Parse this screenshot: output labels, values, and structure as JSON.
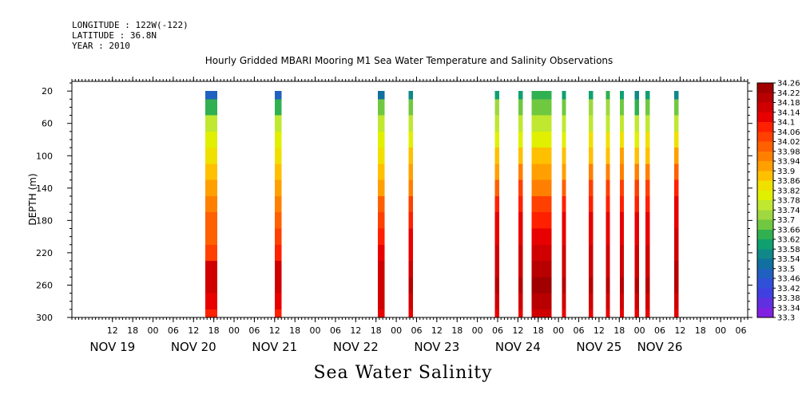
{
  "header": {
    "longitude": "LONGITUDE : 122W(-122)",
    "latitude": "LATITUDE : 36.8N",
    "year": "YEAR : 2010"
  },
  "chart_data": {
    "type": "heatmap",
    "title": "Hourly Gridded MBARI Mooring M1 Sea Water Temperature and Salinity Observations",
    "variable_label": "Sea Water Salinity",
    "ylabel": "DEPTH (m)",
    "ylim": [
      300,
      8
    ],
    "y_ticks": [
      20,
      60,
      100,
      140,
      180,
      220,
      260,
      300
    ],
    "x_range_hours": [
      0,
      200
    ],
    "x_hour_ticks": [
      {
        "h": 12,
        "label": "12"
      },
      {
        "h": 18,
        "label": "18"
      },
      {
        "h": 24,
        "label": "00"
      },
      {
        "h": 30,
        "label": "06"
      },
      {
        "h": 36,
        "label": "12"
      },
      {
        "h": 42,
        "label": "18"
      },
      {
        "h": 48,
        "label": "00"
      },
      {
        "h": 54,
        "label": "06"
      },
      {
        "h": 60,
        "label": "12"
      },
      {
        "h": 66,
        "label": "18"
      },
      {
        "h": 72,
        "label": "00"
      },
      {
        "h": 78,
        "label": "06"
      },
      {
        "h": 84,
        "label": "12"
      },
      {
        "h": 90,
        "label": "18"
      },
      {
        "h": 96,
        "label": "00"
      },
      {
        "h": 102,
        "label": "06"
      },
      {
        "h": 108,
        "label": "12"
      },
      {
        "h": 114,
        "label": "18"
      },
      {
        "h": 120,
        "label": "00"
      },
      {
        "h": 126,
        "label": "06"
      },
      {
        "h": 132,
        "label": "12"
      },
      {
        "h": 138,
        "label": "18"
      },
      {
        "h": 144,
        "label": "00"
      },
      {
        "h": 150,
        "label": "06"
      },
      {
        "h": 156,
        "label": "12"
      },
      {
        "h": 162,
        "label": "18"
      },
      {
        "h": 168,
        "label": "00"
      },
      {
        "h": 174,
        "label": "06"
      },
      {
        "h": 180,
        "label": "12"
      },
      {
        "h": 186,
        "label": "18"
      },
      {
        "h": 192,
        "label": "00"
      },
      {
        "h": 198,
        "label": "06"
      }
    ],
    "date_labels": [
      {
        "h": 12,
        "label": "NOV 19"
      },
      {
        "h": 36,
        "label": "NOV 20"
      },
      {
        "h": 60,
        "label": "NOV 21"
      },
      {
        "h": 84,
        "label": "NOV 22"
      },
      {
        "h": 108,
        "label": "NOV 23"
      },
      {
        "h": 132,
        "label": "NOV 24"
      },
      {
        "h": 156,
        "label": "NOV 25"
      },
      {
        "h": 174,
        "label": "NOV 26"
      }
    ],
    "colorbar_levels": [
      "34.26",
      "34.22",
      "34.18",
      "34.14",
      "34.1",
      "34.06",
      "34.02",
      "33.98",
      "33.94",
      "33.9",
      "33.86",
      "33.82",
      "33.78",
      "33.74",
      "33.7",
      "33.66",
      "33.62",
      "33.58",
      "33.54",
      "33.5",
      "33.46",
      "33.42",
      "33.38",
      "33.34",
      "33.3"
    ],
    "colorbar_colors": [
      "#a00000",
      "#b80000",
      "#d00000",
      "#e80000",
      "#ff2000",
      "#ff4000",
      "#ff6000",
      "#ff8000",
      "#ffa000",
      "#ffc000",
      "#f0e000",
      "#e0f000",
      "#c0e830",
      "#a0d840",
      "#70c840",
      "#30b050",
      "#10a070",
      "#108888",
      "#1070a0",
      "#2060c0",
      "#3050d8",
      "#4040e0",
      "#6030e0",
      "#8020e0",
      "#a000f0"
    ],
    "depth_levels": [
      20,
      40,
      60,
      80,
      100,
      120,
      140,
      160,
      180,
      200,
      220,
      240,
      260,
      280,
      300
    ],
    "columns": [
      {
        "t0": 39.5,
        "t1": 43.0,
        "values": [
          33.48,
          33.62,
          33.74,
          33.78,
          33.82,
          33.86,
          33.9,
          33.96,
          33.98,
          34.0,
          34.04,
          34.14,
          34.16,
          34.1,
          34.08
        ]
      },
      {
        "t0": 60.0,
        "t1": 62.0,
        "values": [
          33.48,
          33.64,
          33.74,
          33.78,
          33.82,
          33.86,
          33.9,
          33.96,
          34.0,
          34.02,
          34.06,
          34.14,
          34.16,
          34.12,
          34.08
        ]
      },
      {
        "t0": 90.5,
        "t1": 92.5,
        "values": [
          33.5,
          33.66,
          33.74,
          33.78,
          33.82,
          33.86,
          33.9,
          33.98,
          34.02,
          34.06,
          34.1,
          34.14,
          34.16,
          34.14,
          34.1
        ]
      },
      {
        "t0": 99.7,
        "t1": 100.9,
        "values": [
          33.56,
          33.66,
          33.74,
          33.8,
          33.86,
          33.9,
          33.96,
          34.02,
          34.06,
          34.1,
          34.12,
          34.14,
          34.18,
          34.14,
          34.1
        ]
      },
      {
        "t0": 125.2,
        "t1": 126.5,
        "values": [
          33.6,
          33.7,
          33.76,
          33.8,
          33.86,
          33.92,
          34.0,
          34.06,
          34.1,
          34.12,
          34.14,
          34.16,
          34.18,
          34.16,
          34.12
        ]
      },
      {
        "t0": 132.2,
        "t1": 133.5,
        "values": [
          33.58,
          33.68,
          33.76,
          33.8,
          33.88,
          33.94,
          34.02,
          34.08,
          34.1,
          34.12,
          34.14,
          34.16,
          34.18,
          34.16,
          34.12
        ]
      },
      {
        "t0": 136.0,
        "t1": 142.0,
        "values": [
          33.62,
          33.66,
          33.74,
          33.8,
          33.86,
          33.9,
          33.96,
          34.02,
          34.06,
          34.1,
          34.14,
          34.18,
          34.22,
          34.2,
          34.16
        ]
      },
      {
        "t0": 145.0,
        "t1": 146.2,
        "values": [
          33.6,
          33.68,
          33.74,
          33.8,
          33.86,
          33.92,
          34.0,
          34.06,
          34.1,
          34.12,
          34.14,
          34.16,
          34.18,
          34.16,
          34.12
        ]
      },
      {
        "t0": 153.0,
        "t1": 154.2,
        "values": [
          33.6,
          33.7,
          33.76,
          33.82,
          33.88,
          33.94,
          34.02,
          34.08,
          34.1,
          34.12,
          34.14,
          34.16,
          34.18,
          34.16,
          34.12
        ]
      },
      {
        "t0": 158.0,
        "t1": 159.2,
        "values": [
          33.64,
          33.7,
          33.76,
          33.82,
          33.88,
          33.94,
          34.02,
          34.08,
          34.1,
          34.12,
          34.14,
          34.16,
          34.18,
          34.16,
          34.12
        ]
      },
      {
        "t0": 162.2,
        "t1": 163.4,
        "values": [
          33.6,
          33.68,
          33.76,
          33.82,
          33.9,
          33.96,
          34.04,
          34.08,
          34.1,
          34.12,
          34.14,
          34.16,
          34.18,
          34.16,
          34.12
        ]
      },
      {
        "t0": 166.5,
        "t1": 167.8,
        "values": [
          33.56,
          33.64,
          33.74,
          33.8,
          33.88,
          33.96,
          34.04,
          34.08,
          34.1,
          34.12,
          34.14,
          34.16,
          34.18,
          34.16,
          34.12
        ]
      },
      {
        "t0": 169.7,
        "t1": 171.0,
        "values": [
          33.6,
          33.68,
          33.76,
          33.82,
          33.88,
          33.96,
          34.04,
          34.08,
          34.1,
          34.12,
          34.14,
          34.16,
          34.18,
          34.16,
          34.12
        ]
      },
      {
        "t0": 178.2,
        "t1": 179.5,
        "values": [
          33.56,
          33.66,
          33.76,
          33.82,
          33.9,
          33.98,
          34.06,
          34.1,
          34.12,
          34.14,
          34.16,
          34.18,
          34.18,
          34.16,
          34.12
        ]
      }
    ]
  }
}
